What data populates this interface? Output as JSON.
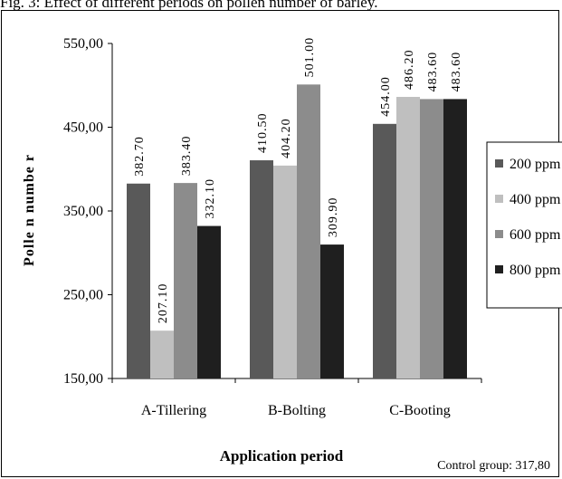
{
  "caption": "Fig. 3: Effect of different periods on pollen number of barley.",
  "chart_data": {
    "type": "bar",
    "categories": [
      "A-Tillering",
      "B-Bolting",
      "C-Booting"
    ],
    "series": [
      {
        "name": "200 ppm",
        "values": [
          382.7,
          410.5,
          454.0
        ],
        "labels": [
          "382.70",
          "410.50",
          "454.00"
        ],
        "color": "#595959"
      },
      {
        "name": "400 ppm",
        "values": [
          207.1,
          404.2,
          486.2
        ],
        "labels": [
          "207.10",
          "404.20",
          "486.20"
        ],
        "color": "#bfbfbf"
      },
      {
        "name": "600 ppm",
        "values": [
          383.4,
          501.0,
          483.6
        ],
        "labels": [
          "383.40",
          "501.00",
          "483.60"
        ],
        "color": "#8c8c8c"
      },
      {
        "name": "800 ppm",
        "values": [
          332.1,
          309.9,
          483.6
        ],
        "labels": [
          "332.10",
          "309.90",
          "483.60"
        ],
        "color": "#1f1f1f"
      }
    ],
    "ylim": [
      150,
      550
    ],
    "yticks": [
      150,
      250,
      350,
      450,
      550
    ],
    "ytick_labels": [
      "150,00",
      "250,00",
      "350,00",
      "450,00",
      "550,00"
    ],
    "ylabel": "Polle n numbe r",
    "xlabel": "Application period",
    "legend": "right",
    "grid": false,
    "note": "Control group: 317,80"
  }
}
